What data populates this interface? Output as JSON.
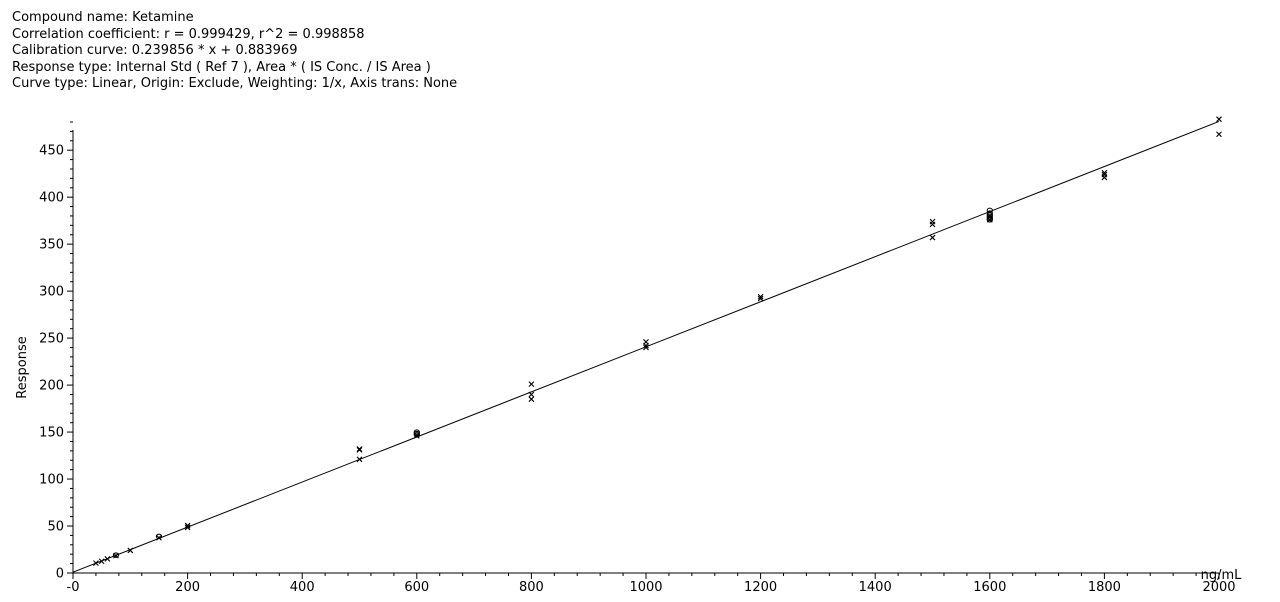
{
  "header": {
    "compound": "Compound name: Ketamine",
    "correlation": "Correlation coefficient: r = 0.999429, r^2 = 0.998858",
    "calibration": "Calibration curve: 0.239856 * x + 0.883969",
    "response_type": "Response type: Internal Std ( Ref 7 ), Area * ( IS Conc. / IS Area )",
    "curve_type": "Curve type: Linear, Origin: Exclude, Weighting: 1/x, Axis trans: None"
  },
  "chart_data": {
    "type": "scatter",
    "xlabel": "ng/mL",
    "ylabel": "Response",
    "xlim": [
      0,
      2000
    ],
    "ylim": [
      0,
      480
    ],
    "xticks": [
      0,
      200,
      400,
      600,
      800,
      1000,
      1200,
      1400,
      1600,
      1800,
      2000
    ],
    "xtick_labels": [
      "-0",
      "200",
      "400",
      "600",
      "800",
      "1000",
      "1200",
      "1400",
      "1600",
      "1800",
      "2000"
    ],
    "yticks": [
      0,
      50,
      100,
      150,
      200,
      250,
      300,
      350,
      400,
      450
    ],
    "ytick_labels": [
      "0",
      "50",
      "100",
      "150",
      "200",
      "250",
      "300",
      "350",
      "400",
      "450"
    ],
    "fit_line": {
      "slope": 0.239856,
      "intercept": 0.883969,
      "x_range": [
        0,
        2000
      ]
    },
    "series": [
      {
        "marker": "cross",
        "points": [
          [
            40,
            10.5
          ],
          [
            50,
            12.5
          ],
          [
            60,
            15
          ],
          [
            75,
            18.5
          ],
          [
            100,
            24
          ],
          [
            150,
            37.5
          ],
          [
            200,
            48.5
          ],
          [
            200,
            50.5
          ],
          [
            500,
            121
          ],
          [
            500,
            131
          ],
          [
            500,
            132
          ],
          [
            600,
            146
          ],
          [
            800,
            185
          ],
          [
            800,
            190
          ],
          [
            800,
            201
          ],
          [
            1000,
            240
          ],
          [
            1000,
            242
          ],
          [
            1000,
            246
          ],
          [
            1200,
            292
          ],
          [
            1200,
            294
          ],
          [
            1500,
            357
          ],
          [
            1500,
            371
          ],
          [
            1500,
            374
          ],
          [
            1600,
            376
          ],
          [
            1600,
            380
          ],
          [
            1800,
            421
          ],
          [
            1800,
            424
          ],
          [
            1800,
            426
          ],
          [
            2000,
            467
          ],
          [
            2000,
            483
          ]
        ]
      },
      {
        "marker": "circle",
        "points": [
          [
            75,
            19
          ],
          [
            150,
            39
          ],
          [
            600,
            147
          ],
          [
            600,
            148.5
          ],
          [
            600,
            150
          ],
          [
            1600,
            376
          ],
          [
            1600,
            377.5
          ],
          [
            1600,
            379
          ],
          [
            1600,
            381
          ],
          [
            1600,
            383
          ],
          [
            1600,
            386
          ]
        ]
      }
    ],
    "grid": false,
    "legend": "none"
  }
}
